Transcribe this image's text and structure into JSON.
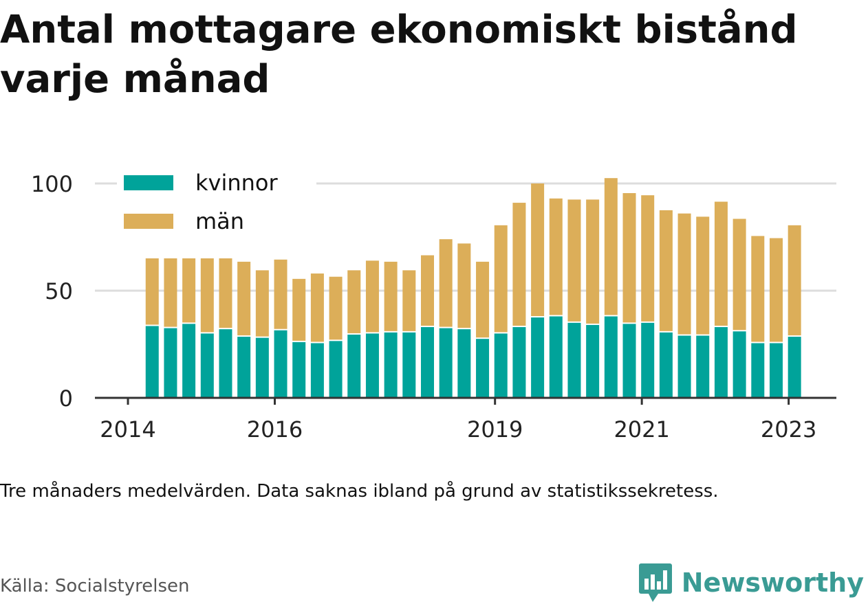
{
  "title": "Antal mottagare ekonomiskt bistånd varje månad",
  "note": "Tre månaders medelvärden. Data saknas ibland på grund av statistikssekretess.",
  "source": "Källa: Socialstyrelsen",
  "brand": {
    "name": "Newsworthy",
    "icon": "newsworthy-logo-icon",
    "color": "#3a9b94"
  },
  "colors": {
    "kvinnor": "#00a39a",
    "man": "#dcae59",
    "grid": "#dddddd",
    "axis": "#333333"
  },
  "chart_data": {
    "type": "bar",
    "stacked": true,
    "x_tick_labels": [
      "2014",
      "2016",
      "2019",
      "2021",
      "2023"
    ],
    "x_tick_positions": [
      2014.0,
      2016.0,
      2019.0,
      2021.0,
      2023.0
    ],
    "xlim": [
      2013.55,
      2023.65
    ],
    "y_ticks": [
      0,
      50,
      100
    ],
    "y_tick_labels": [
      "0",
      "50",
      "100"
    ],
    "ylim": [
      0,
      100
    ],
    "grid": true,
    "legend_placement": "top-left",
    "x": [
      2014.33,
      2014.58,
      2014.83,
      2015.08,
      2015.33,
      2015.58,
      2015.83,
      2016.08,
      2016.33,
      2016.58,
      2016.83,
      2017.08,
      2017.33,
      2017.58,
      2017.83,
      2018.08,
      2018.33,
      2018.58,
      2018.83,
      2019.08,
      2019.33,
      2019.58,
      2019.83,
      2020.08,
      2020.33,
      2020.58,
      2020.83,
      2021.08,
      2021.33,
      2021.58,
      2021.83,
      2022.08,
      2022.33,
      2022.58,
      2022.83,
      2023.08
    ],
    "series": [
      {
        "name": "kvinnor",
        "color": "#00a39a",
        "values": [
          33.5,
          32.5,
          34.5,
          30,
          32,
          28.5,
          28,
          31.5,
          26,
          25.5,
          26.5,
          29.5,
          30,
          30.5,
          30.5,
          33,
          32.5,
          32,
          27.5,
          30,
          33,
          37.5,
          38,
          35,
          34,
          38,
          34.5,
          35,
          30.5,
          29,
          29,
          33,
          31,
          25.5,
          25.5,
          28.5
        ]
      },
      {
        "name": "män",
        "color": "#dcae59",
        "values": [
          37,
          37,
          36,
          39,
          38.5,
          35,
          31.5,
          33,
          29.5,
          32.5,
          30,
          30,
          34,
          33,
          29,
          33.5,
          41.5,
          40,
          36,
          50.5,
          58,
          62.5,
          55,
          57.5,
          58.5,
          64.5,
          61,
          59.5,
          57,
          57,
          55.5,
          58.5,
          52.5,
          50,
          49,
          52
        ]
      }
    ],
    "censored_caps": [
      2014.33,
      2014.83
    ]
  }
}
